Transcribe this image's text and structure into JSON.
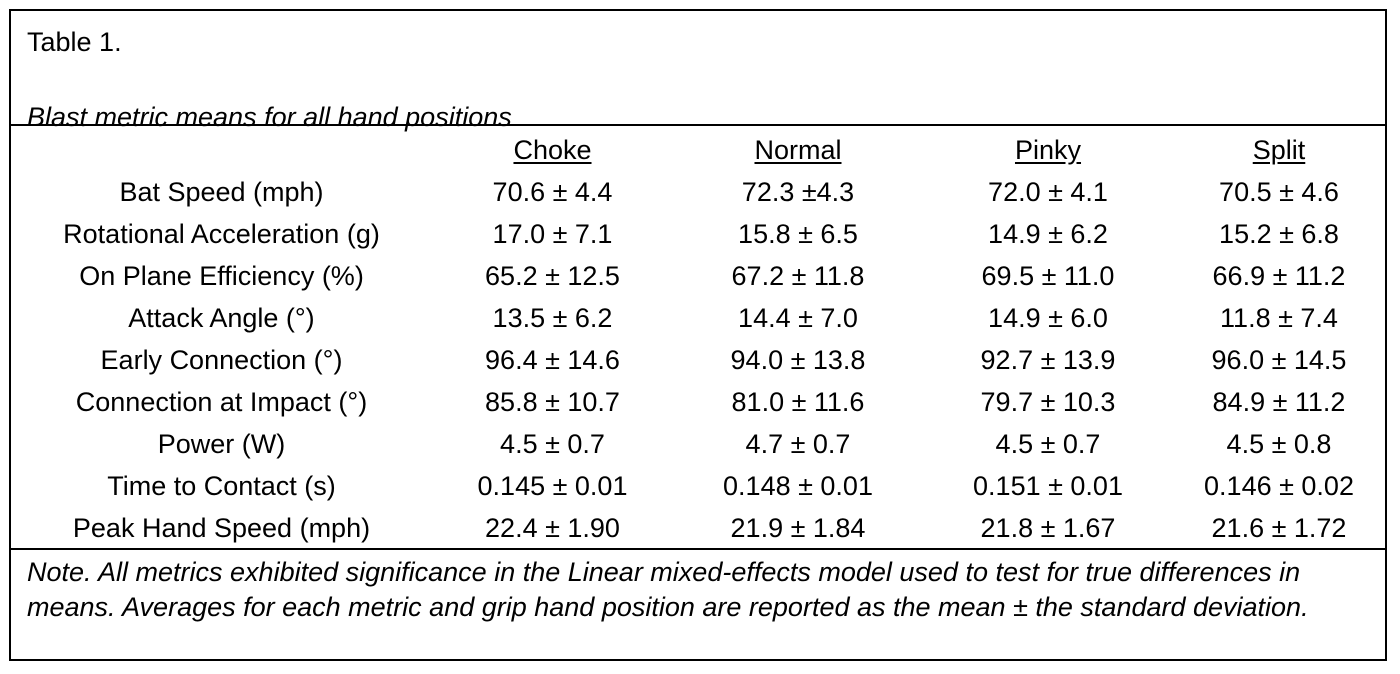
{
  "table": {
    "label": "Table 1.",
    "title": "Blast metric means for all hand positions",
    "columns": [
      "",
      "Choke",
      "Normal",
      "Pinky",
      "Split"
    ],
    "rows": [
      [
        "Bat Speed (mph)",
        "70.6 ± 4.4",
        "72.3 ±4.3",
        "72.0 ± 4.1",
        "70.5 ± 4.6"
      ],
      [
        "Rotational Acceleration (g)",
        "17.0 ± 7.1",
        "15.8 ± 6.5",
        "14.9 ± 6.2",
        "15.2 ± 6.8"
      ],
      [
        "On Plane Efficiency (%)",
        "65.2 ± 12.5",
        "67.2 ± 11.8",
        "69.5 ± 11.0",
        "66.9 ± 11.2"
      ],
      [
        "Attack Angle (°)",
        "13.5 ± 6.2",
        "14.4 ± 7.0",
        "14.9 ± 6.0",
        "11.8 ± 7.4"
      ],
      [
        "Early Connection (°)",
        "96.4 ± 14.6",
        "94.0 ± 13.8",
        "92.7 ± 13.9",
        "96.0 ± 14.5"
      ],
      [
        "Connection at Impact (°)",
        "85.8 ± 10.7",
        "81.0 ± 11.6",
        "79.7 ± 10.3",
        "84.9 ± 11.2"
      ],
      [
        "Power (W)",
        "4.5 ± 0.7",
        "4.7 ± 0.7",
        "4.5 ± 0.7",
        "4.5 ± 0.8"
      ],
      [
        "Time to Contact (s)",
        "0.145 ± 0.01",
        "0.148 ± 0.01",
        "0.151 ± 0.01",
        "0.146 ± 0.02"
      ],
      [
        "Peak Hand Speed (mph)",
        "22.4 ± 1.90",
        "21.9 ± 1.84",
        "21.8 ± 1.67",
        "21.6 ± 1.72"
      ]
    ],
    "note": "Note. All metrics exhibited significance in the Linear mixed-effects model used to test for true differences in means. Averages for each metric and grip hand position are reported as the mean ± the standard deviation."
  }
}
